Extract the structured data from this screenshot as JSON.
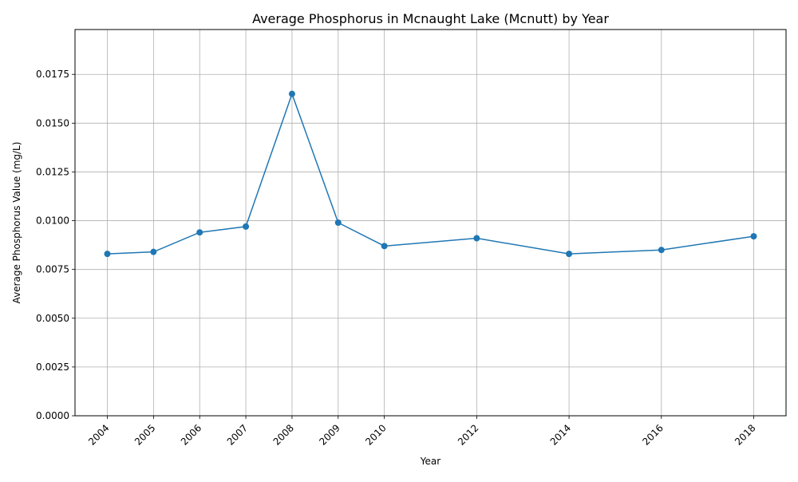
{
  "chart_data": {
    "type": "line",
    "title": "Average Phosphorus in Mcnaught Lake (Mcnutt) by Year",
    "xlabel": "Year",
    "ylabel": "Average Phosphorus Value (mg/L)",
    "x": [
      2004,
      2005,
      2006,
      2007,
      2008,
      2009,
      2010,
      2012,
      2014,
      2016,
      2018
    ],
    "xticks": [
      "2004",
      "2005",
      "2006",
      "2007",
      "2008",
      "2009",
      "2010",
      "2012",
      "2014",
      "2016",
      "2018"
    ],
    "series": [
      {
        "name": "",
        "values": [
          0.0083,
          0.0084,
          0.0094,
          0.0097,
          0.0165,
          0.0099,
          0.0087,
          0.0091,
          0.0083,
          0.0085,
          0.0092
        ]
      }
    ],
    "yticks": [
      "0.0000",
      "0.0025",
      "0.0050",
      "0.0075",
      "0.0100",
      "0.0125",
      "0.0150",
      "0.0175"
    ],
    "ytick_values": [
      0,
      0.0025,
      0.005,
      0.0075,
      0.01,
      0.0125,
      0.015,
      0.0175
    ],
    "xlim": [
      2003.3,
      2018.7
    ],
    "ylim": [
      0,
      0.0198
    ],
    "grid": true,
    "legend": false,
    "line_color": "#1f77b4",
    "marker": "circle"
  }
}
